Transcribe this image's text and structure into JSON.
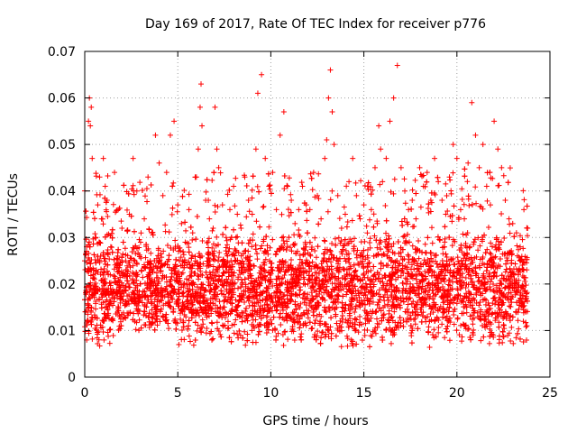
{
  "chart_data": {
    "type": "scatter",
    "title": "Day 169 of 2017, Rate Of TEC Index for receiver p776",
    "xlabel": "GPS time / hours",
    "ylabel": "ROTI / TECUs",
    "xlim": [
      0,
      25
    ],
    "ylim": [
      0,
      0.07
    ],
    "x_ticks": [
      0,
      5,
      10,
      15,
      20,
      25
    ],
    "y_ticks": [
      0,
      0.01,
      0.02,
      0.03,
      0.04,
      0.05,
      0.06,
      0.07
    ],
    "x_tick_labels": [
      "0",
      "5",
      "10",
      "15",
      "20",
      "25"
    ],
    "y_tick_labels": [
      "0",
      "0.01",
      "0.02",
      "0.03",
      "0.04",
      "0.05",
      "0.06",
      "0.07"
    ],
    "grid": true,
    "marker": "+",
    "color": "#ff0000",
    "x_range_of_data": [
      0,
      23.8
    ],
    "series": [
      {
        "points": [
          [
            0.0,
            0.025
          ],
          [
            0.1,
            0.028
          ],
          [
            0.15,
            0.012
          ],
          [
            0.2,
            0.055
          ],
          [
            0.25,
            0.06
          ],
          [
            0.3,
            0.054
          ],
          [
            0.35,
            0.058
          ],
          [
            0.4,
            0.047
          ],
          [
            0.45,
            0.022
          ],
          [
            0.5,
            0.018
          ],
          [
            0.6,
            0.03
          ],
          [
            0.7,
            0.037
          ],
          [
            0.8,
            0.043
          ],
          [
            0.9,
            0.034
          ],
          [
            1.0,
            0.047
          ],
          [
            1.1,
            0.041
          ],
          [
            1.2,
            0.038
          ],
          [
            1.4,
            0.028
          ],
          [
            1.6,
            0.044
          ],
          [
            1.8,
            0.036
          ],
          [
            2.0,
            0.032
          ],
          [
            2.2,
            0.025
          ],
          [
            2.4,
            0.035
          ],
          [
            2.6,
            0.047
          ],
          [
            2.8,
            0.04
          ],
          [
            3.0,
            0.029
          ],
          [
            3.2,
            0.034
          ],
          [
            3.4,
            0.043
          ],
          [
            3.6,
            0.031
          ],
          [
            3.8,
            0.052
          ],
          [
            4.0,
            0.046
          ],
          [
            4.2,
            0.039
          ],
          [
            4.4,
            0.044
          ],
          [
            4.6,
            0.052
          ],
          [
            4.8,
            0.055
          ],
          [
            5.0,
            0.037
          ],
          [
            5.2,
            0.033
          ],
          [
            5.4,
            0.029
          ],
          [
            5.6,
            0.036
          ],
          [
            5.8,
            0.031
          ],
          [
            6.0,
            0.043
          ],
          [
            6.1,
            0.049
          ],
          [
            6.2,
            0.058
          ],
          [
            6.25,
            0.063
          ],
          [
            6.3,
            0.054
          ],
          [
            6.5,
            0.038
          ],
          [
            6.7,
            0.034
          ],
          [
            6.9,
            0.032
          ],
          [
            7.0,
            0.058
          ],
          [
            7.1,
            0.049
          ],
          [
            7.2,
            0.045
          ],
          [
            7.4,
            0.037
          ],
          [
            7.6,
            0.03
          ],
          [
            7.8,
            0.036
          ],
          [
            8.0,
            0.041
          ],
          [
            8.2,
            0.035
          ],
          [
            8.4,
            0.032
          ],
          [
            8.6,
            0.043
          ],
          [
            8.8,
            0.038
          ],
          [
            9.0,
            0.035
          ],
          [
            9.2,
            0.049
          ],
          [
            9.3,
            0.061
          ],
          [
            9.5,
            0.065
          ],
          [
            9.7,
            0.047
          ],
          [
            9.9,
            0.041
          ],
          [
            10.1,
            0.044
          ],
          [
            10.3,
            0.036
          ],
          [
            10.5,
            0.052
          ],
          [
            10.7,
            0.057
          ],
          [
            10.9,
            0.041
          ],
          [
            11.1,
            0.038
          ],
          [
            11.3,
            0.033
          ],
          [
            11.5,
            0.036
          ],
          [
            11.7,
            0.041
          ],
          [
            11.9,
            0.037
          ],
          [
            12.1,
            0.036
          ],
          [
            12.3,
            0.044
          ],
          [
            12.5,
            0.039
          ],
          [
            12.7,
            0.034
          ],
          [
            12.9,
            0.047
          ],
          [
            13.0,
            0.051
          ],
          [
            13.1,
            0.06
          ],
          [
            13.2,
            0.066
          ],
          [
            13.3,
            0.057
          ],
          [
            13.4,
            0.05
          ],
          [
            13.6,
            0.039
          ],
          [
            13.8,
            0.032
          ],
          [
            14.0,
            0.035
          ],
          [
            14.2,
            0.042
          ],
          [
            14.4,
            0.047
          ],
          [
            14.6,
            0.039
          ],
          [
            14.8,
            0.034
          ],
          [
            15.0,
            0.037
          ],
          [
            15.2,
            0.041
          ],
          [
            15.4,
            0.036
          ],
          [
            15.6,
            0.045
          ],
          [
            15.8,
            0.054
          ],
          [
            15.9,
            0.049
          ],
          [
            16.0,
            0.042
          ],
          [
            16.2,
            0.047
          ],
          [
            16.4,
            0.055
          ],
          [
            16.6,
            0.06
          ],
          [
            16.8,
            0.067
          ],
          [
            17.0,
            0.045
          ],
          [
            17.2,
            0.04
          ],
          [
            17.4,
            0.036
          ],
          [
            17.6,
            0.038
          ],
          [
            17.8,
            0.034
          ],
          [
            18.0,
            0.045
          ],
          [
            18.2,
            0.041
          ],
          [
            18.4,
            0.044
          ],
          [
            18.6,
            0.038
          ],
          [
            18.8,
            0.047
          ],
          [
            19.0,
            0.042
          ],
          [
            19.2,
            0.038
          ],
          [
            19.4,
            0.035
          ],
          [
            19.6,
            0.043
          ],
          [
            19.8,
            0.05
          ],
          [
            20.0,
            0.047
          ],
          [
            20.2,
            0.036
          ],
          [
            20.4,
            0.034
          ],
          [
            20.6,
            0.046
          ],
          [
            20.8,
            0.059
          ],
          [
            21.0,
            0.052
          ],
          [
            21.2,
            0.045
          ],
          [
            21.4,
            0.05
          ],
          [
            21.6,
            0.041
          ],
          [
            21.8,
            0.037
          ],
          [
            22.0,
            0.055
          ],
          [
            22.2,
            0.049
          ],
          [
            22.4,
            0.045
          ],
          [
            22.6,
            0.038
          ],
          [
            22.8,
            0.034
          ],
          [
            23.0,
            0.033
          ],
          [
            23.2,
            0.031
          ],
          [
            23.4,
            0.028
          ],
          [
            23.6,
            0.036
          ],
          [
            23.8,
            0.032
          ]
        ]
      }
    ]
  }
}
